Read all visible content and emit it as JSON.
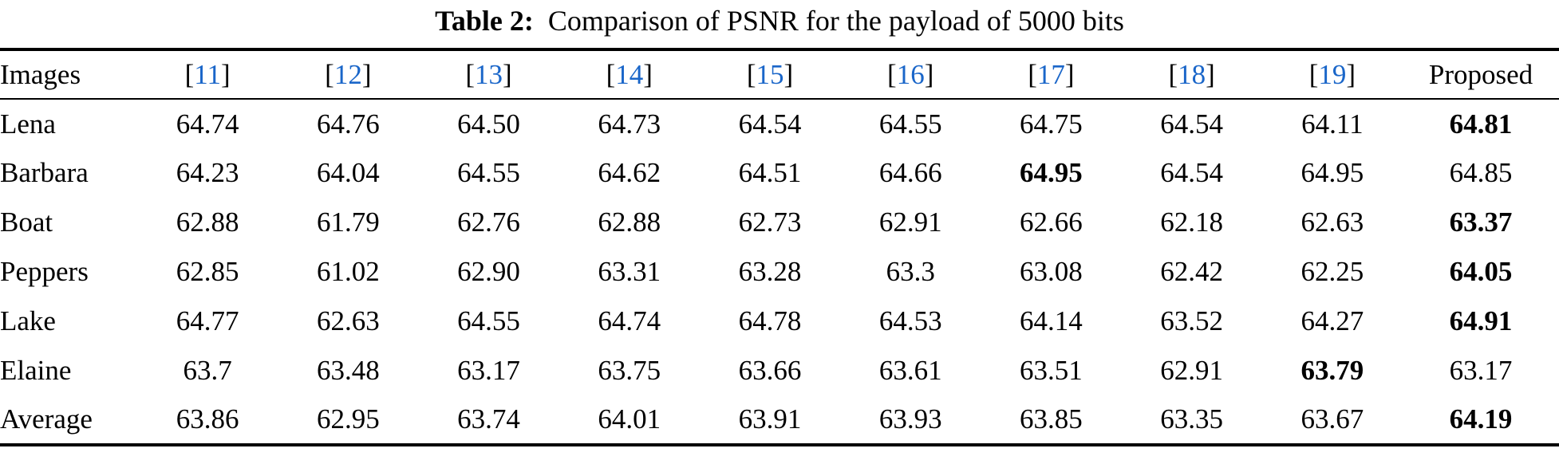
{
  "caption": {
    "label": "Table 2:",
    "text": "Comparison of PSNR for the payload of 5000 bits"
  },
  "colors": {
    "citation_blue": "#1a66c9",
    "text": "#000000",
    "rule": "#000000",
    "background": "#ffffff"
  },
  "chart_data": {
    "type": "table",
    "title": "Table 2: Comparison of PSNR for the payload of 5000 bits",
    "columns": [
      "Images",
      "[11]",
      "[12]",
      "[13]",
      "[14]",
      "[15]",
      "[16]",
      "[17]",
      "[18]",
      "[19]",
      "Proposed"
    ],
    "rows": [
      [
        "Lena",
        "64.74",
        "64.76",
        "64.50",
        "64.73",
        "64.54",
        "64.55",
        "64.75",
        "64.54",
        "64.11",
        "64.81"
      ],
      [
        "Barbara",
        "64.23",
        "64.04",
        "64.55",
        "64.62",
        "64.51",
        "64.66",
        "64.95",
        "64.54",
        "64.95",
        "64.85"
      ],
      [
        "Boat",
        "62.88",
        "61.79",
        "62.76",
        "62.88",
        "62.73",
        "62.91",
        "62.66",
        "62.18",
        "62.63",
        "63.37"
      ],
      [
        "Peppers",
        "62.85",
        "61.02",
        "62.90",
        "63.31",
        "63.28",
        "63.3",
        "63.08",
        "62.42",
        "62.25",
        "64.05"
      ],
      [
        "Lake",
        "64.77",
        "62.63",
        "64.55",
        "64.74",
        "64.78",
        "64.53",
        "64.14",
        "63.52",
        "64.27",
        "64.91"
      ],
      [
        "Elaine",
        "63.7",
        "63.48",
        "63.17",
        "63.75",
        "63.66",
        "63.61",
        "63.51",
        "62.91",
        "63.79",
        "63.17"
      ],
      [
        "Average",
        "63.86",
        "62.95",
        "63.74",
        "64.01",
        "63.91",
        "63.93",
        "63.85",
        "63.35",
        "63.67",
        "64.19"
      ]
    ]
  },
  "table": {
    "header": {
      "images_label": "Images",
      "citations": [
        "11",
        "12",
        "13",
        "14",
        "15",
        "16",
        "17",
        "18",
        "19"
      ],
      "proposed_label": "Proposed"
    },
    "rows": [
      {
        "image": "Lena",
        "values": [
          "64.74",
          "64.76",
          "64.50",
          "64.73",
          "64.54",
          "64.55",
          "64.75",
          "64.54",
          "64.11",
          "64.81"
        ],
        "bold_index": 9
      },
      {
        "image": "Barbara",
        "values": [
          "64.23",
          "64.04",
          "64.55",
          "64.62",
          "64.51",
          "64.66",
          "64.95",
          "64.54",
          "64.95",
          "64.85"
        ],
        "bold_index": 6
      },
      {
        "image": "Boat",
        "values": [
          "62.88",
          "61.79",
          "62.76",
          "62.88",
          "62.73",
          "62.91",
          "62.66",
          "62.18",
          "62.63",
          "63.37"
        ],
        "bold_index": 9
      },
      {
        "image": "Peppers",
        "values": [
          "62.85",
          "61.02",
          "62.90",
          "63.31",
          "63.28",
          "63.3",
          "63.08",
          "62.42",
          "62.25",
          "64.05"
        ],
        "bold_index": 9
      },
      {
        "image": "Lake",
        "values": [
          "64.77",
          "62.63",
          "64.55",
          "64.74",
          "64.78",
          "64.53",
          "64.14",
          "63.52",
          "64.27",
          "64.91"
        ],
        "bold_index": 9
      },
      {
        "image": "Elaine",
        "values": [
          "63.7",
          "63.48",
          "63.17",
          "63.75",
          "63.66",
          "63.61",
          "63.51",
          "62.91",
          "63.79",
          "63.17"
        ],
        "bold_index": 8
      },
      {
        "image": "Average",
        "values": [
          "63.86",
          "62.95",
          "63.74",
          "64.01",
          "63.91",
          "63.93",
          "63.85",
          "63.35",
          "63.67",
          "64.19"
        ],
        "bold_index": 9
      }
    ]
  }
}
